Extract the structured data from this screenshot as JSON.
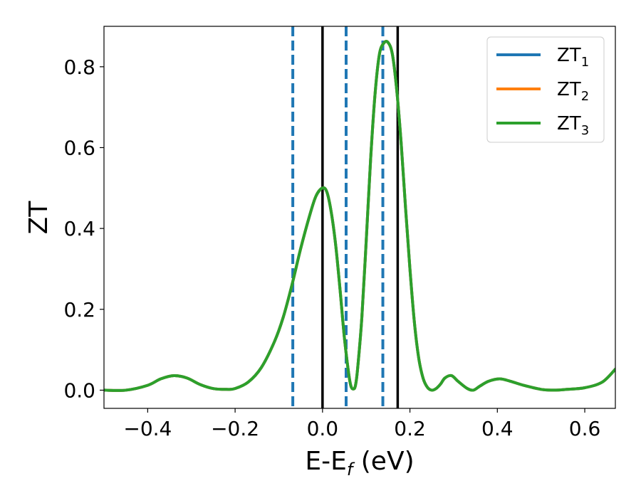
{
  "chart_data": {
    "type": "line",
    "xlabel": "E-E",
    "xlabel_sub": "f",
    "xlabel_unit": " (eV)",
    "ylabel": "ZT",
    "xlim": [
      -0.5,
      0.67
    ],
    "ylim": [
      -0.045,
      0.9
    ],
    "xticks": [
      -0.4,
      -0.2,
      0.0,
      0.2,
      0.4,
      0.6
    ],
    "xtick_labels": [
      "−0.4",
      "−0.2",
      "0.0",
      "0.2",
      "0.4",
      "0.6"
    ],
    "yticks": [
      0.0,
      0.2,
      0.4,
      0.6,
      0.8
    ],
    "ytick_labels": [
      "0.0",
      "0.2",
      "0.4",
      "0.6",
      "0.8"
    ],
    "grid": false,
    "legend_position": "top-right",
    "series": [
      {
        "name": "ZT",
        "name_sub": "1",
        "color": "#1f77b4",
        "x": [
          -0.5,
          -0.45,
          -0.4,
          -0.37,
          -0.34,
          -0.31,
          -0.28,
          -0.25,
          -0.22,
          -0.2,
          -0.17,
          -0.14,
          -0.11,
          -0.09,
          -0.07,
          -0.05,
          -0.03,
          -0.015,
          0.0,
          0.01,
          0.02,
          0.03,
          0.04,
          0.05,
          0.06,
          0.065,
          0.07,
          0.075,
          0.08,
          0.09,
          0.1,
          0.11,
          0.12,
          0.13,
          0.14,
          0.15,
          0.16,
          0.17,
          0.18,
          0.19,
          0.2,
          0.21,
          0.22,
          0.23,
          0.24,
          0.25,
          0.26,
          0.27,
          0.28,
          0.295,
          0.31,
          0.33,
          0.345,
          0.36,
          0.38,
          0.405,
          0.43,
          0.46,
          0.5,
          0.53,
          0.56,
          0.6,
          0.64,
          0.67
        ],
        "y": [
          0.0,
          0.0,
          0.012,
          0.028,
          0.036,
          0.03,
          0.014,
          0.004,
          0.002,
          0.004,
          0.02,
          0.056,
          0.12,
          0.18,
          0.26,
          0.35,
          0.43,
          0.48,
          0.5,
          0.49,
          0.44,
          0.36,
          0.25,
          0.13,
          0.04,
          0.01,
          0.003,
          0.01,
          0.05,
          0.18,
          0.37,
          0.57,
          0.73,
          0.83,
          0.858,
          0.86,
          0.83,
          0.74,
          0.61,
          0.45,
          0.3,
          0.17,
          0.08,
          0.03,
          0.007,
          0.0,
          0.004,
          0.015,
          0.03,
          0.036,
          0.022,
          0.005,
          0.0,
          0.01,
          0.022,
          0.028,
          0.022,
          0.012,
          0.002,
          0.0,
          0.002,
          0.006,
          0.02,
          0.052
        ]
      },
      {
        "name": "ZT",
        "name_sub": "2",
        "color": "#ff7f0e",
        "x": [
          -0.5,
          -0.45,
          -0.4,
          -0.37,
          -0.34,
          -0.31,
          -0.28,
          -0.25,
          -0.22,
          -0.2,
          -0.17,
          -0.14,
          -0.11,
          -0.09,
          -0.07,
          -0.05,
          -0.03,
          -0.015,
          0.0,
          0.01,
          0.02,
          0.03,
          0.04,
          0.05,
          0.06,
          0.065,
          0.07,
          0.075,
          0.08,
          0.09,
          0.1,
          0.11,
          0.12,
          0.13,
          0.14,
          0.15,
          0.16,
          0.17,
          0.18,
          0.19,
          0.2,
          0.21,
          0.22,
          0.23,
          0.24,
          0.25,
          0.26,
          0.27,
          0.28,
          0.295,
          0.31,
          0.33,
          0.345,
          0.36,
          0.38,
          0.405,
          0.43,
          0.46,
          0.5,
          0.53,
          0.56,
          0.6,
          0.64,
          0.67
        ],
        "y": [
          0.0,
          0.0,
          0.012,
          0.028,
          0.036,
          0.03,
          0.014,
          0.004,
          0.002,
          0.004,
          0.02,
          0.056,
          0.12,
          0.18,
          0.26,
          0.35,
          0.43,
          0.48,
          0.5,
          0.49,
          0.44,
          0.36,
          0.25,
          0.13,
          0.04,
          0.01,
          0.003,
          0.01,
          0.05,
          0.18,
          0.37,
          0.57,
          0.73,
          0.83,
          0.858,
          0.86,
          0.83,
          0.74,
          0.61,
          0.45,
          0.3,
          0.17,
          0.08,
          0.03,
          0.007,
          0.0,
          0.004,
          0.015,
          0.03,
          0.036,
          0.022,
          0.005,
          0.0,
          0.01,
          0.022,
          0.028,
          0.022,
          0.012,
          0.002,
          0.0,
          0.002,
          0.006,
          0.02,
          0.052
        ]
      },
      {
        "name": "ZT",
        "name_sub": "3",
        "color": "#2ca02c",
        "x": [
          -0.5,
          -0.45,
          -0.4,
          -0.37,
          -0.34,
          -0.31,
          -0.28,
          -0.25,
          -0.22,
          -0.2,
          -0.17,
          -0.14,
          -0.11,
          -0.09,
          -0.07,
          -0.05,
          -0.03,
          -0.015,
          0.0,
          0.01,
          0.02,
          0.03,
          0.04,
          0.05,
          0.06,
          0.065,
          0.07,
          0.075,
          0.08,
          0.09,
          0.1,
          0.11,
          0.12,
          0.13,
          0.14,
          0.15,
          0.16,
          0.17,
          0.18,
          0.19,
          0.2,
          0.21,
          0.22,
          0.23,
          0.24,
          0.25,
          0.26,
          0.27,
          0.28,
          0.295,
          0.31,
          0.33,
          0.345,
          0.36,
          0.38,
          0.405,
          0.43,
          0.46,
          0.5,
          0.53,
          0.56,
          0.6,
          0.64,
          0.67
        ],
        "y": [
          0.0,
          0.0,
          0.012,
          0.028,
          0.036,
          0.03,
          0.014,
          0.004,
          0.002,
          0.004,
          0.02,
          0.056,
          0.12,
          0.18,
          0.26,
          0.35,
          0.43,
          0.48,
          0.5,
          0.49,
          0.44,
          0.36,
          0.25,
          0.13,
          0.04,
          0.01,
          0.003,
          0.01,
          0.05,
          0.18,
          0.37,
          0.57,
          0.73,
          0.83,
          0.858,
          0.86,
          0.83,
          0.74,
          0.61,
          0.45,
          0.3,
          0.17,
          0.08,
          0.03,
          0.007,
          0.0,
          0.004,
          0.015,
          0.03,
          0.036,
          0.022,
          0.005,
          0.0,
          0.01,
          0.022,
          0.028,
          0.022,
          0.012,
          0.002,
          0.0,
          0.002,
          0.006,
          0.02,
          0.052
        ]
      }
    ],
    "vlines": [
      {
        "x": 0.0,
        "style": "solid",
        "color": "#000000"
      },
      {
        "x": 0.172,
        "style": "solid",
        "color": "#000000"
      },
      {
        "x": -0.068,
        "style": "dashed",
        "color": "#1f77b4"
      },
      {
        "x": 0.054,
        "style": "dashed",
        "color": "#1f77b4"
      },
      {
        "x": 0.138,
        "style": "dashed",
        "color": "#1f77b4"
      }
    ]
  }
}
